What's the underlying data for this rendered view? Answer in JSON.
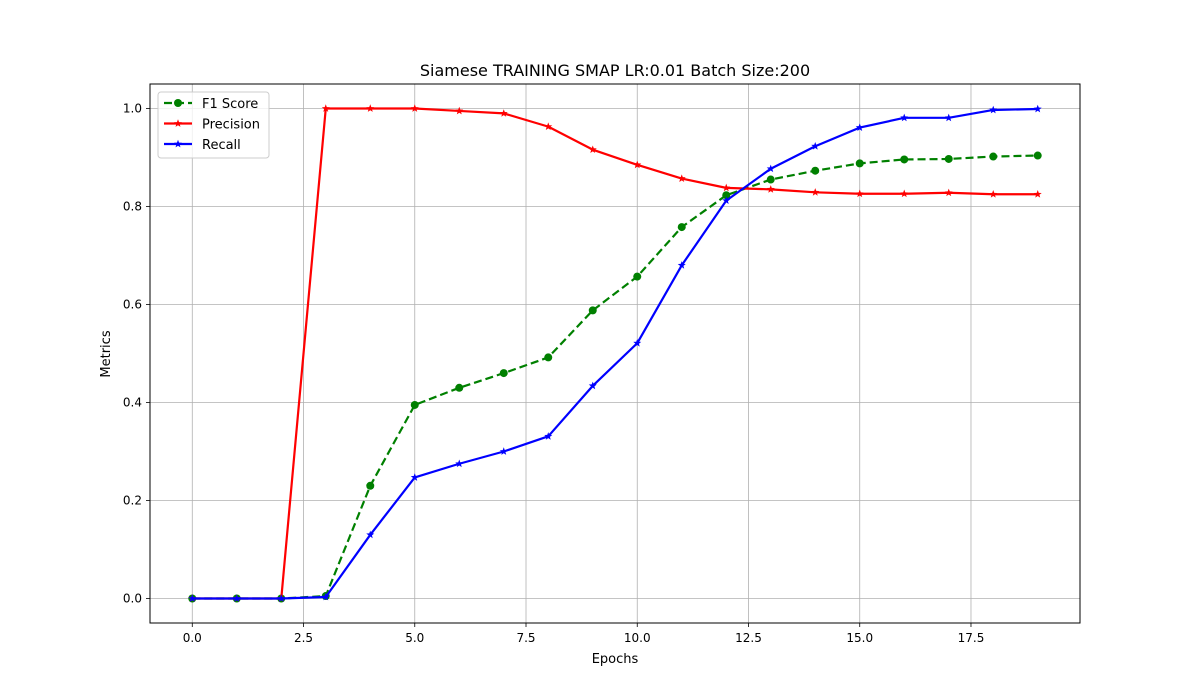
{
  "chart_data": {
    "type": "line",
    "title": "Siamese TRAINING SMAP LR:0.01 Batch Size:200",
    "xlabel": "Epochs",
    "ylabel": "Metrics",
    "xlim": [
      -0.95,
      19.95
    ],
    "ylim": [
      -0.05,
      1.05
    ],
    "xticks": [
      0.0,
      2.5,
      5.0,
      7.5,
      10.0,
      12.5,
      15.0,
      17.5
    ],
    "xtick_labels": [
      "0.0",
      "2.5",
      "5.0",
      "7.5",
      "10.0",
      "12.5",
      "15.0",
      "17.5"
    ],
    "yticks": [
      0.0,
      0.2,
      0.4,
      0.6,
      0.8,
      1.0
    ],
    "ytick_labels": [
      "0.0",
      "0.2",
      "0.4",
      "0.6",
      "0.8",
      "1.0"
    ],
    "grid": true,
    "legend_position": "upper-left",
    "x": [
      0,
      1,
      2,
      3,
      4,
      5,
      6,
      7,
      8,
      9,
      10,
      11,
      12,
      13,
      14,
      15,
      16,
      17,
      18,
      19
    ],
    "series": [
      {
        "name": "F1 Score",
        "color": "#008000",
        "line_style": "dashed",
        "marker": "circle",
        "values": [
          0.0,
          0.0,
          0.0,
          0.005,
          0.23,
          0.395,
          0.43,
          0.46,
          0.492,
          0.588,
          0.657,
          0.758,
          0.823,
          0.855,
          0.873,
          0.888,
          0.896,
          0.897,
          0.902,
          0.904
        ]
      },
      {
        "name": "Precision",
        "color": "#ff0000",
        "line_style": "solid",
        "marker": "star",
        "values": [
          0.0,
          0.0,
          0.0,
          1.0,
          1.0,
          1.0,
          0.995,
          0.99,
          0.963,
          0.916,
          0.885,
          0.857,
          0.838,
          0.835,
          0.829,
          0.826,
          0.826,
          0.828,
          0.825,
          0.825
        ]
      },
      {
        "name": "Recall",
        "color": "#0000ff",
        "line_style": "solid",
        "marker": "star",
        "values": [
          0.0,
          0.0,
          0.0,
          0.003,
          0.13,
          0.247,
          0.275,
          0.3,
          0.331,
          0.434,
          0.521,
          0.68,
          0.812,
          0.877,
          0.923,
          0.961,
          0.981,
          0.981,
          0.997,
          0.999
        ]
      }
    ]
  }
}
